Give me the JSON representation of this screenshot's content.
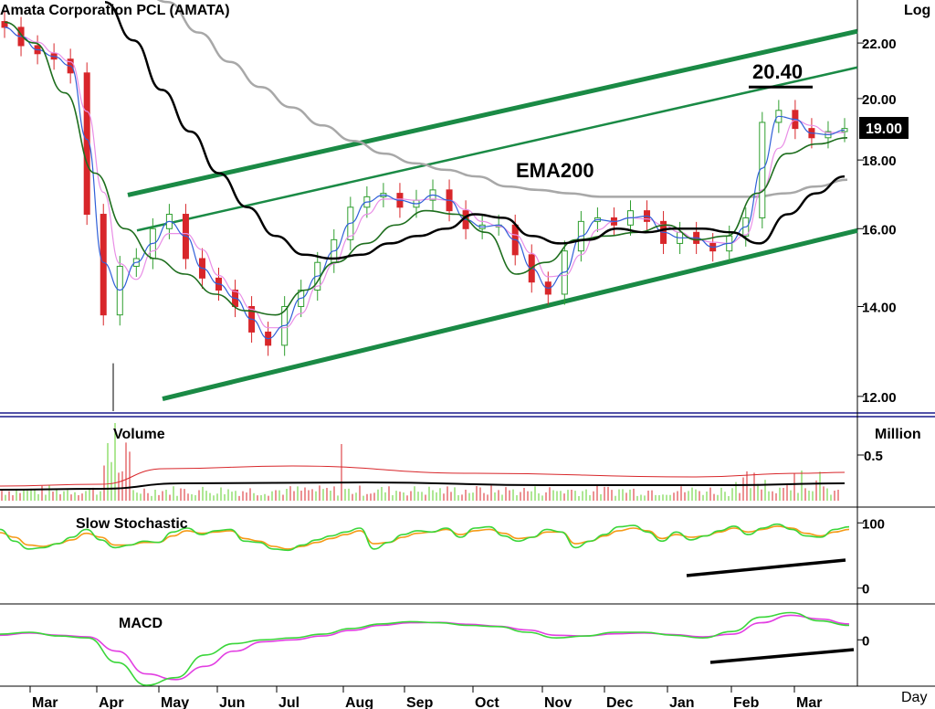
{
  "chart_data": [
    {
      "type": "candlestick",
      "title": "Amata Corporation PCL (AMATA)",
      "scale_label": "Log",
      "ylim": [
        11.7,
        23.5
      ],
      "y_ticks": [
        "22.00",
        "20.00",
        "18.00",
        "16.00",
        "14.00",
        "12.00"
      ],
      "y_tick_values": [
        22,
        20,
        18,
        16,
        14,
        12
      ],
      "last_price_label": "19.00",
      "last_price": 19.0,
      "annotations": {
        "high_label": "20.40",
        "ema_label": "EMA200"
      },
      "colors": {
        "up": "#2e9e2e",
        "down": "#d8262a",
        "channel": "#1a8a45",
        "ema200": "#000000",
        "ma_grey": "#a8a8a8",
        "ma_green": "#1e6e1e",
        "ma_pink": "#e98ee6",
        "ma_blue": "#3060d8"
      },
      "months": [
        "Mar",
        "Apr",
        "May",
        "Jun",
        "Jul",
        "Aug",
        "Sep",
        "Oct",
        "Nov",
        "Dec",
        "Jan",
        "Feb",
        "Mar"
      ],
      "closes": [
        22.6,
        21.9,
        21.6,
        21.4,
        20.9,
        16.4,
        13.8,
        15.0,
        15.2,
        16.0,
        16.4,
        15.2,
        14.7,
        14.4,
        14.0,
        13.4,
        13.1,
        14.0,
        14.4,
        15.1,
        15.7,
        16.6,
        16.9,
        17.0,
        16.6,
        16.8,
        17.1,
        16.5,
        16.0,
        16.1,
        16.1,
        15.3,
        14.6,
        14.3,
        15.4,
        16.2,
        16.3,
        16.1,
        16.5,
        16.2,
        15.6,
        15.9,
        15.6,
        15.4,
        15.8,
        16.3,
        19.2,
        19.6,
        19.0,
        18.7,
        18.9,
        19.0
      ],
      "ema200": [
        23.6,
        22.1,
        20.3,
        18.9,
        17.6,
        16.6,
        15.8,
        15.3,
        15.2,
        15.3,
        15.6,
        15.8,
        16.0,
        16.4,
        16.3,
        15.8,
        15.6,
        15.7,
        16.0,
        15.9,
        16.0,
        16.0,
        15.9,
        15.6,
        16.4,
        17.0,
        17.5
      ],
      "ma_grey": [
        24.2,
        23.6,
        22.4,
        21.3,
        20.4,
        19.7,
        19.1,
        18.6,
        18.2,
        17.9,
        17.7,
        17.5,
        17.2,
        17.1,
        17.0,
        16.9,
        16.9,
        16.9,
        16.9,
        16.9,
        16.9,
        17.0,
        17.2,
        17.4
      ],
      "ma_green": [
        22.8,
        22.0,
        20.2,
        17.6,
        16.0,
        15.2,
        14.8,
        14.3,
        13.9,
        13.8,
        14.4,
        15.1,
        15.6,
        16.1,
        16.5,
        16.4,
        15.9,
        14.8,
        15.1,
        15.7,
        15.8,
        15.9,
        16.1,
        15.7,
        15.8,
        17.0,
        18.2,
        18.5,
        18.7
      ],
      "lows": [
        12.5,
        12.4,
        14.1,
        14.8
      ],
      "series": [
        {
          "name": "EMA200",
          "values": []
        }
      ]
    },
    {
      "type": "bar",
      "title": "Volume",
      "unit_label": "Million",
      "y_ticks": [
        "0.5"
      ],
      "y_tick_values": [
        0.5
      ],
      "ylim": [
        0,
        0.9
      ],
      "avg_red": 0.3,
      "avg_black": 0.17
    },
    {
      "type": "line",
      "title": "Slow Stochastic",
      "y_ticks": [
        "100",
        "0"
      ],
      "y_tick_values": [
        100,
        0
      ],
      "ylim": [
        -20,
        120
      ],
      "series": [
        {
          "values": [
            90,
            72,
            60,
            62,
            68,
            78,
            90,
            74,
            62,
            66,
            72,
            70,
            86,
            92,
            82,
            88,
            90,
            72,
            70,
            60,
            58,
            66,
            74,
            80,
            86,
            92,
            60,
            70,
            82,
            88,
            86,
            92,
            78,
            92,
            94,
            80,
            72,
            78,
            90,
            86,
            62,
            72,
            82,
            94,
            96,
            86,
            72,
            86,
            74,
            80,
            88,
            95,
            82,
            92,
            98,
            90,
            80,
            78,
            90,
            94
          ]
        },
        {
          "values": [
            85,
            78,
            66,
            64,
            68,
            74,
            84,
            78,
            66,
            66,
            70,
            70,
            80,
            88,
            84,
            86,
            88,
            76,
            72,
            64,
            60,
            64,
            70,
            76,
            82,
            88,
            68,
            70,
            78,
            84,
            86,
            90,
            82,
            88,
            90,
            84,
            76,
            78,
            86,
            86,
            68,
            72,
            80,
            88,
            92,
            88,
            76,
            82,
            78,
            80,
            86,
            92,
            86,
            90,
            95,
            92,
            84,
            80,
            86,
            90
          ]
        }
      ]
    },
    {
      "type": "line",
      "title": "MACD",
      "y_ticks": [
        "0"
      ],
      "y_tick_values": [
        0
      ],
      "ylim": [
        -1.2,
        0.9
      ],
      "series": [
        {
          "values": [
            0.15,
            0.2,
            0.1,
            0.05,
            -0.6,
            -1.2,
            -1.0,
            -0.4,
            -0.1,
            0.0,
            0.05,
            0.15,
            0.3,
            0.42,
            0.48,
            0.45,
            0.38,
            0.35,
            0.2,
            0.05,
            0.1,
            0.2,
            0.2,
            0.12,
            0.05,
            0.22,
            0.6,
            0.72,
            0.5,
            0.38
          ]
        },
        {
          "values": [
            0.12,
            0.18,
            0.12,
            0.08,
            -0.3,
            -0.9,
            -1.05,
            -0.7,
            -0.3,
            -0.05,
            0.0,
            0.1,
            0.25,
            0.38,
            0.45,
            0.46,
            0.41,
            0.36,
            0.26,
            0.12,
            0.1,
            0.16,
            0.18,
            0.14,
            0.08,
            0.15,
            0.45,
            0.65,
            0.55,
            0.42
          ]
        }
      ]
    }
  ],
  "x_axis": {
    "labels": [
      "Mar",
      "Apr",
      "May",
      "Jun",
      "Jul",
      "Aug",
      "Sep",
      "Oct",
      "Nov",
      "Dec",
      "Jan",
      "Feb",
      "Mar"
    ],
    "period_label": "Day"
  }
}
